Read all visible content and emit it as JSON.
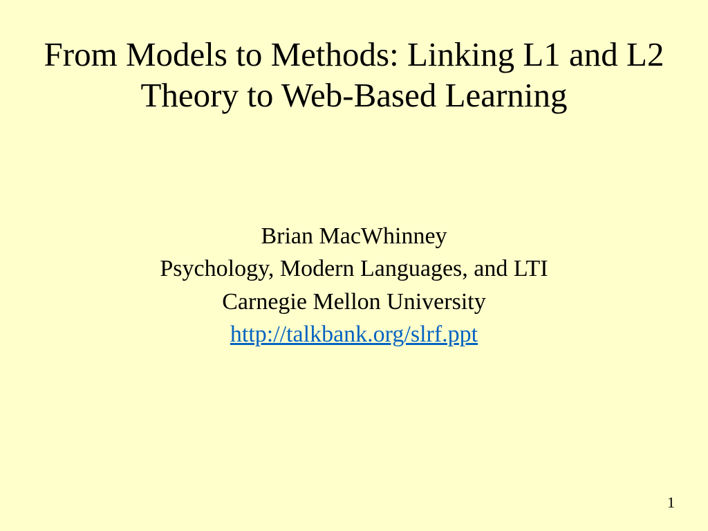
{
  "slide": {
    "background_color": "#ffffcc",
    "title": "From Models to Methods: Linking L1 and L2 Theory to Web-Based Learning",
    "title_fontsize": 49,
    "title_color": "#000000",
    "author": {
      "name": "Brian MacWhinney",
      "affiliation_line1": "Psychology, Modern Languages, and LTI",
      "affiliation_line2": "Carnegie Mellon University",
      "link_text": "http://talkbank.org/slrf.ppt",
      "link_color": "#0563c1",
      "fontsize": 34,
      "text_color": "#000000"
    },
    "page_number": "1",
    "page_number_fontsize": 22,
    "font_family": "Times New Roman"
  }
}
